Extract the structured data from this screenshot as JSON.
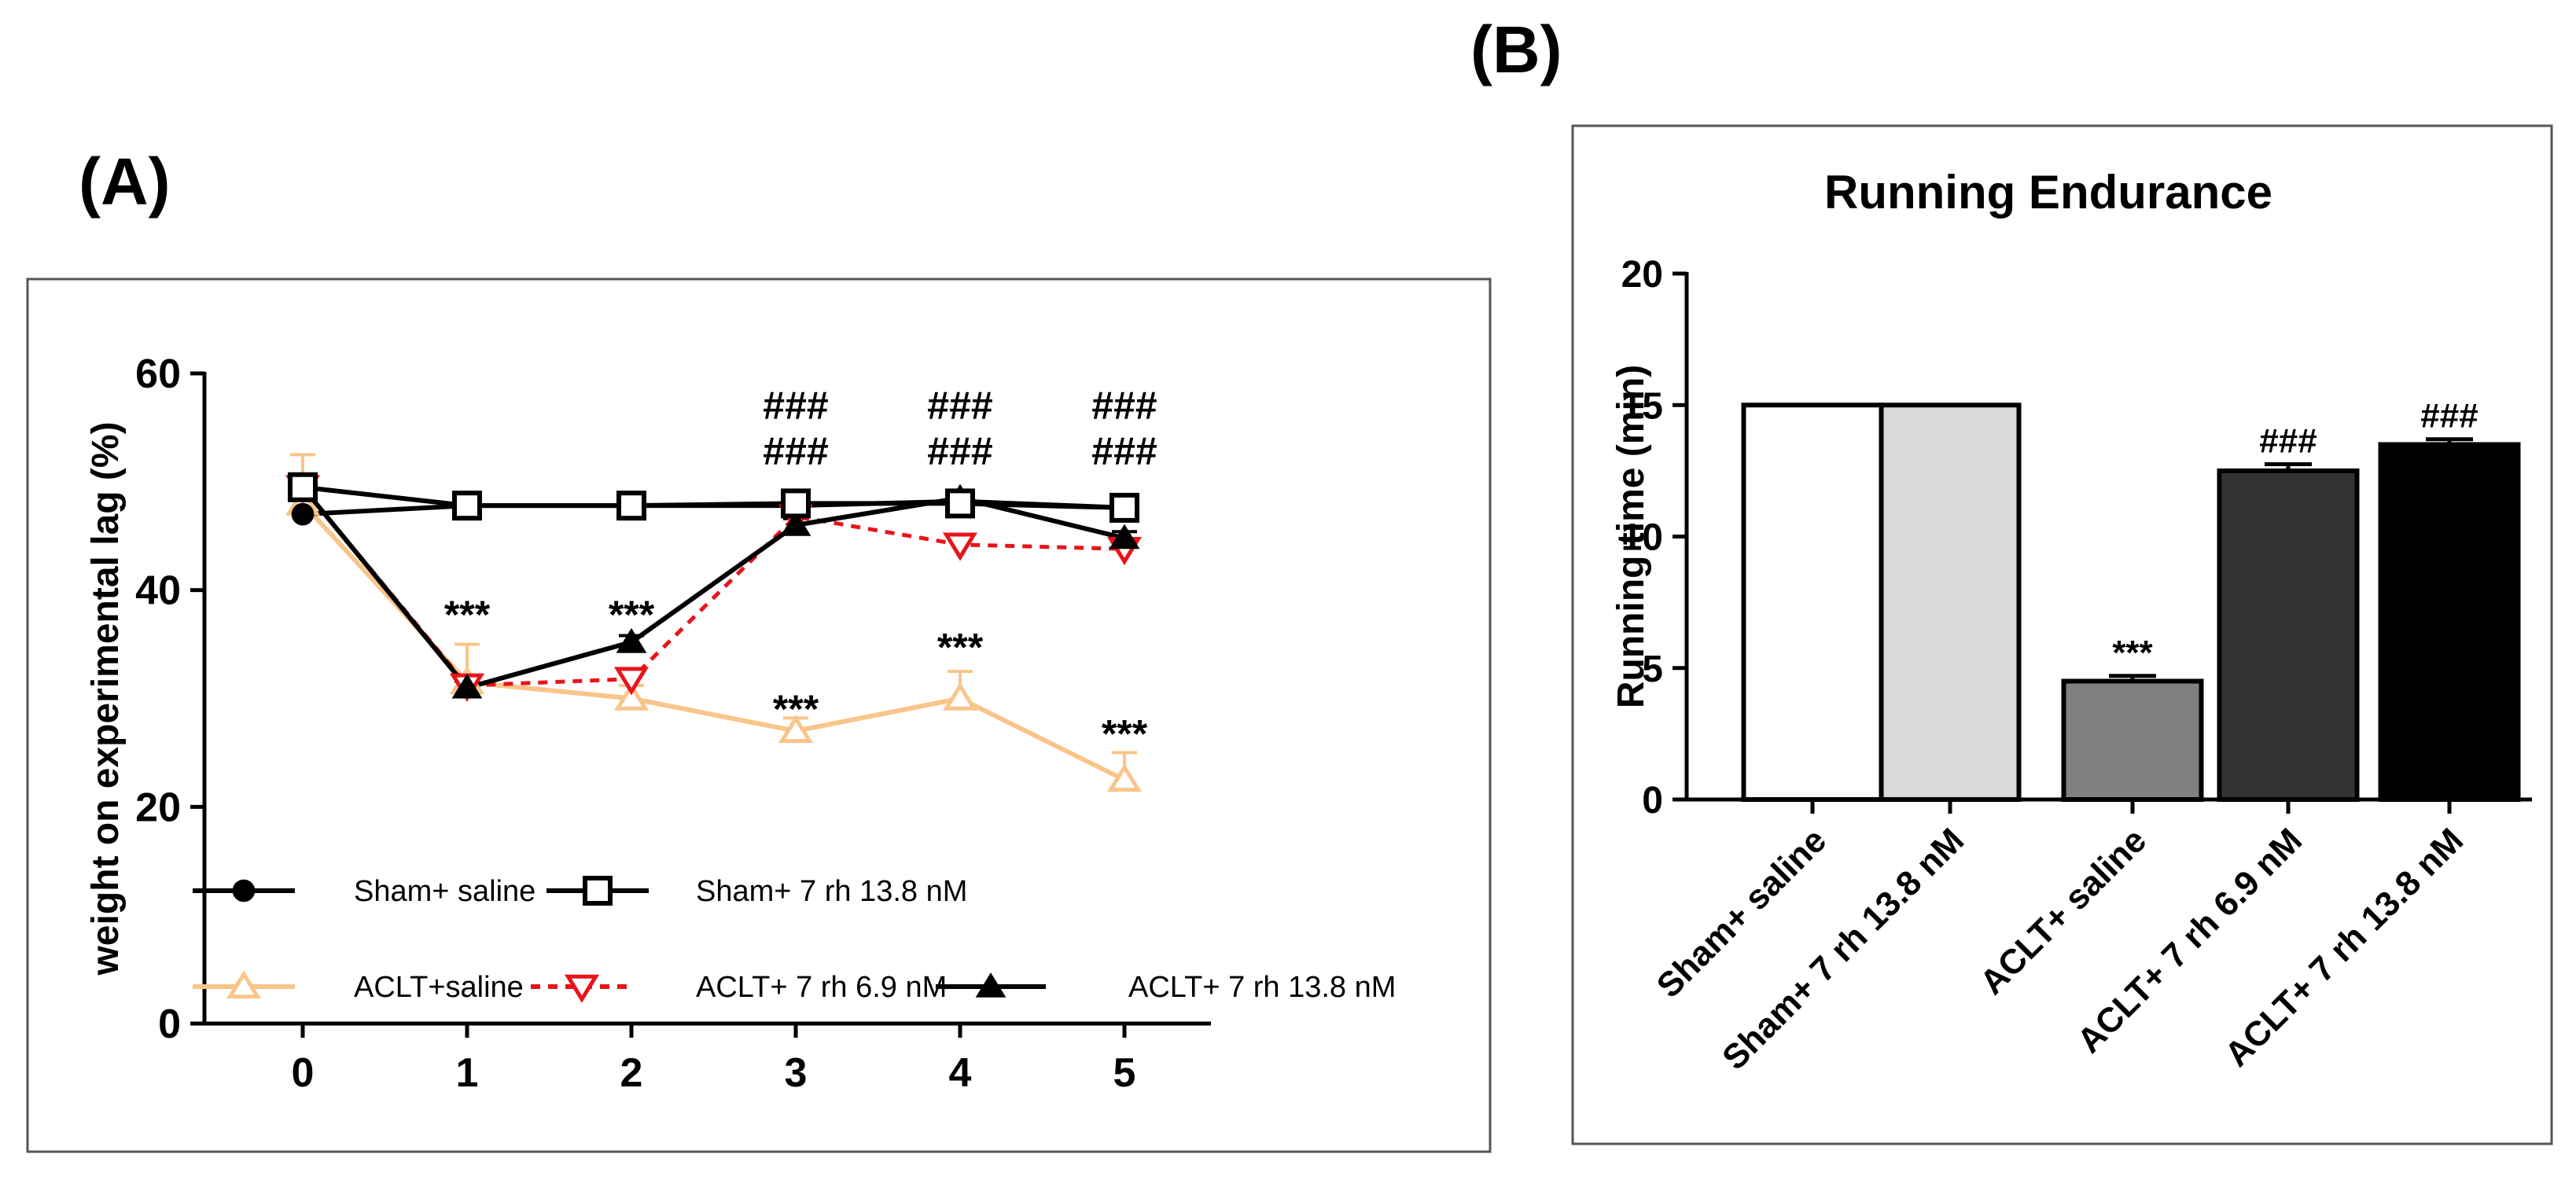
{
  "panel_a_label": "(A)",
  "panel_b_label": "(B)",
  "colors": {
    "sham_saline": "#000000",
    "sham_7rh": "#000000",
    "aclt_saline": "#f9c58a",
    "aclt_7rh_69": "#e8141b",
    "aclt_7rh_138": "#000000",
    "frame": "#555555"
  },
  "chart_data": [
    {
      "id": "A",
      "type": "line",
      "title": "",
      "xlabel": "",
      "ylabel": "weight on experimental lag (%)",
      "x": [
        0,
        1,
        2,
        3,
        4,
        5
      ],
      "xticks": [
        "0",
        "1",
        "2",
        "3",
        "4",
        "5"
      ],
      "yticks": [
        "0",
        "20",
        "40",
        "60"
      ],
      "ylim": [
        0,
        60
      ],
      "series": [
        {
          "key": "sham_saline",
          "name": "Sham+ saline",
          "marker": "circle",
          "dash": false,
          "values": [
            47,
            47.8,
            47.8,
            47.8,
            48.2,
            47.6
          ],
          "err": [
            0.5,
            0.4,
            0.4,
            0.5,
            0.5,
            0.5
          ]
        },
        {
          "key": "sham_7rh",
          "name": "Sham+ 7 rh 13.8 nM",
          "marker": "square-open",
          "dash": false,
          "values": [
            49.5,
            47.8,
            47.8,
            48,
            48,
            47.6
          ],
          "err": [
            0.8,
            0.4,
            0.4,
            0.5,
            0.5,
            0.5
          ]
        },
        {
          "key": "aclt_saline",
          "name": "ACLT+saline",
          "marker": "triangle-up-open",
          "dash": false,
          "values": [
            48,
            31.5,
            30,
            27,
            30,
            22.5
          ],
          "err": [
            4.5,
            3.5,
            1.2,
            1.2,
            2.5,
            2.5
          ]
        },
        {
          "key": "aclt_7rh_69",
          "name": "ACLT+ 7 rh 6.9 nM",
          "marker": "triangle-down-open",
          "dash": true,
          "values": [
            49.5,
            31.2,
            31.8,
            46.8,
            44.2,
            43.8
          ],
          "err": [
            0.8,
            0.6,
            0.6,
            0.6,
            0.8,
            0.8
          ]
        },
        {
          "key": "aclt_7rh_138",
          "name": "ACLT+ 7 rh 13.8 nM",
          "marker": "triangle-up",
          "dash": false,
          "values": [
            49.5,
            31,
            35.2,
            46,
            48.5,
            44.8
          ],
          "err": [
            0.8,
            0.6,
            0.6,
            0.6,
            0.6,
            0.6
          ]
        }
      ],
      "annotations": [
        {
          "x": 1,
          "y": 36.5,
          "text": "***"
        },
        {
          "x": 2,
          "y": 36.5,
          "text": "***"
        },
        {
          "x": 3,
          "y": 27.8,
          "text": "***"
        },
        {
          "x": 4,
          "y": 33.5,
          "text": "***"
        },
        {
          "x": 5,
          "y": 25.5,
          "text": "***"
        },
        {
          "x": 3,
          "y": 55.8,
          "text": "###"
        },
        {
          "x": 3,
          "y": 51.6,
          "text": "###"
        },
        {
          "x": 4,
          "y": 55.8,
          "text": "###"
        },
        {
          "x": 4,
          "y": 51.6,
          "text": "###"
        },
        {
          "x": 5,
          "y": 55.8,
          "text": "###"
        },
        {
          "x": 5,
          "y": 51.6,
          "text": "###"
        }
      ],
      "legend": "bottom-inside"
    },
    {
      "id": "B",
      "type": "bar",
      "title": "Running Endurance",
      "xlabel": "",
      "ylabel": "Running time (min)",
      "categories": [
        "Sham+ saline",
        "Sham+ 7 rh 13.8 nM",
        "ACLT+ saline",
        "ACLT+ 7 rh 6.9 nM",
        "ACLT+ 7 rh 13.8 nM"
      ],
      "values": [
        15,
        15,
        4.5,
        12.5,
        13.5
      ],
      "err": [
        0,
        0,
        0.2,
        0.25,
        0.2
      ],
      "fills": [
        "#ffffff",
        "#d9d9d9",
        "#808080",
        "#333333",
        "#000000"
      ],
      "annotations": [
        "",
        "",
        "***",
        "###",
        "###"
      ],
      "yticks": [
        "0",
        "5",
        "10",
        "15",
        "20"
      ],
      "ylim": [
        0,
        20
      ]
    }
  ]
}
